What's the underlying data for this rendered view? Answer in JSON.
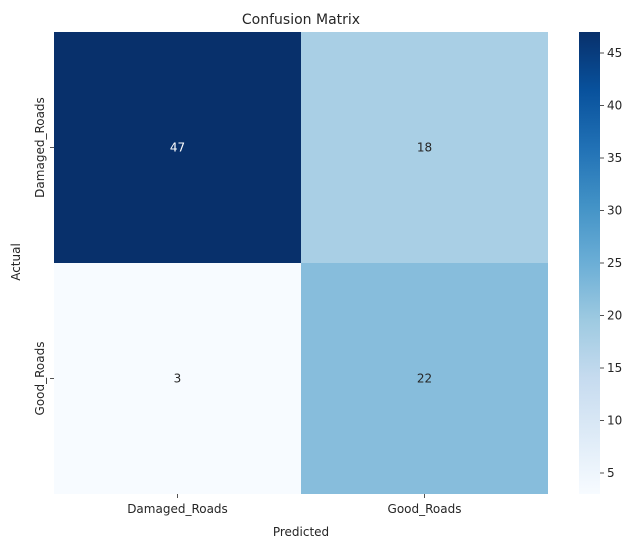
{
  "chart_data": {
    "type": "heatmap",
    "title": "Confusion Matrix",
    "xlabel": "Predicted",
    "ylabel": "Actual",
    "x_categories": [
      "Damaged_Roads",
      "Good_Roads"
    ],
    "y_categories": [
      "Damaged_Roads",
      "Good_Roads"
    ],
    "values": [
      [
        47,
        18
      ],
      [
        3,
        22
      ]
    ],
    "colormap": "Blues",
    "color_range": [
      3,
      47
    ],
    "colorbar_ticks": [
      5,
      10,
      15,
      20,
      25,
      30,
      35,
      40,
      45
    ],
    "annotations": true,
    "annotation_colors": {
      "dark": "#ffffff",
      "light": "#262626"
    },
    "colorbar_stops": [
      "#f7fbff",
      "#deebf7",
      "#c6dbef",
      "#9ecae1",
      "#6baed6",
      "#4292c6",
      "#2171b5",
      "#08519c",
      "#08306b"
    ]
  }
}
